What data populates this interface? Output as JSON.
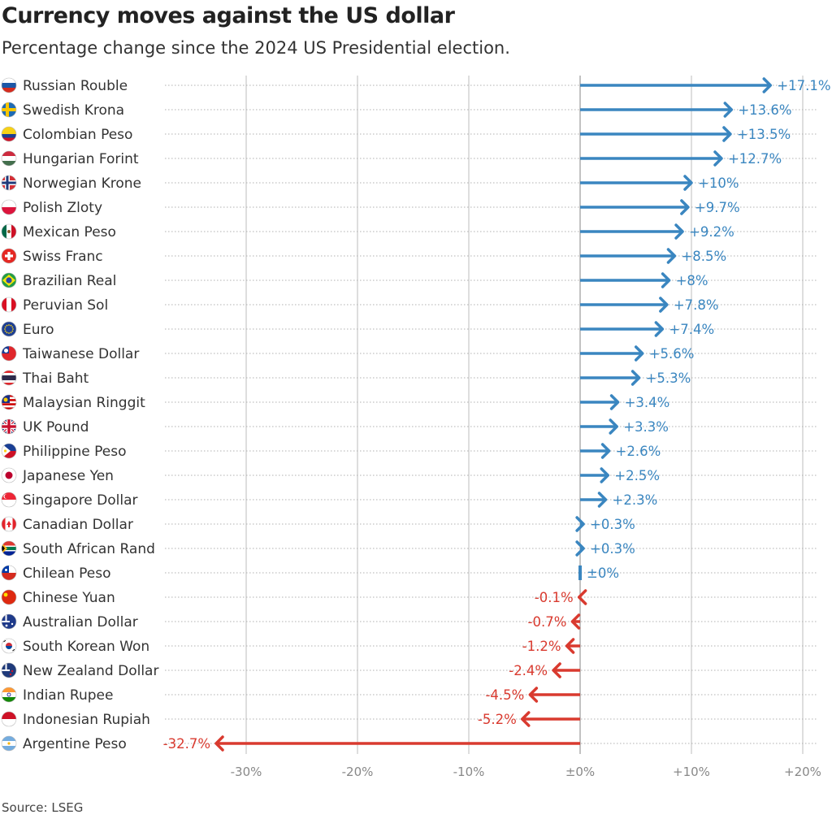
{
  "title": "Currency moves against the US dollar",
  "subtitle": "Percentage change since the 2024 US Presidential election.",
  "source": "Source: LSEG",
  "colors": {
    "positive": "#3a86c0",
    "negative": "#d93a2f",
    "zero": "#3a86c0",
    "grid": "#c8c8c8",
    "dotted": "#b0b0b0",
    "axis": "#888888"
  },
  "chart_data": {
    "type": "bar",
    "title": "Currency moves against the US dollar",
    "subtitle": "Percentage change since the 2024 US Presidential election.",
    "xlim": [
      -35,
      20
    ],
    "xticks": [
      -30,
      -20,
      -10,
      0,
      10,
      20
    ],
    "xtick_labels": [
      "-30%",
      "-20%",
      "-10%",
      "±0%",
      "+10%",
      "+20%"
    ],
    "grid": true,
    "categories": [
      "Russian Rouble",
      "Swedish Krona",
      "Colombian Peso",
      "Hungarian Forint",
      "Norwegian Krone",
      "Polish Zloty",
      "Mexican Peso",
      "Swiss Franc",
      "Brazilian Real",
      "Peruvian Sol",
      "Euro",
      "Taiwanese Dollar",
      "Thai Baht",
      "Malaysian Ringgit",
      "UK Pound",
      "Philippine Peso",
      "Japanese Yen",
      "Singapore Dollar",
      "Canadian Dollar",
      "South African Rand",
      "Chilean Peso",
      "Chinese Yuan",
      "Australian Dollar",
      "South Korean Won",
      "New Zealand Dollar",
      "Indian Rupee",
      "Indonesian Rupiah",
      "Argentine Peso"
    ],
    "values": [
      17.1,
      13.6,
      13.5,
      12.7,
      10,
      9.7,
      9.2,
      8.5,
      8,
      7.8,
      7.4,
      5.6,
      5.3,
      3.4,
      3.3,
      2.6,
      2.5,
      2.3,
      0.3,
      0.3,
      0,
      -0.1,
      -0.7,
      -1.2,
      -2.4,
      -4.5,
      -5.2,
      -32.7
    ],
    "labels": [
      "+17.1%",
      "+13.6%",
      "+13.5%",
      "+12.7%",
      "+10%",
      "+9.7%",
      "+9.2%",
      "+8.5%",
      "+8%",
      "+7.8%",
      "+7.4%",
      "+5.6%",
      "+5.3%",
      "+3.4%",
      "+3.3%",
      "+2.6%",
      "+2.5%",
      "+2.3%",
      "+0.3%",
      "+0.3%",
      "±0%",
      "-0.1%",
      "-0.7%",
      "-1.2%",
      "-2.4%",
      "-4.5%",
      "-5.2%",
      "-32.7%"
    ],
    "flags": [
      "russia-flag-icon",
      "sweden-flag-icon",
      "colombia-flag-icon",
      "hungary-flag-icon",
      "norway-flag-icon",
      "poland-flag-icon",
      "mexico-flag-icon",
      "switzerland-flag-icon",
      "brazil-flag-icon",
      "peru-flag-icon",
      "eu-flag-icon",
      "taiwan-flag-icon",
      "thailand-flag-icon",
      "malaysia-flag-icon",
      "uk-flag-icon",
      "philippines-flag-icon",
      "japan-flag-icon",
      "singapore-flag-icon",
      "canada-flag-icon",
      "south-africa-flag-icon",
      "chile-flag-icon",
      "china-flag-icon",
      "australia-flag-icon",
      "south-korea-flag-icon",
      "new-zealand-flag-icon",
      "india-flag-icon",
      "indonesia-flag-icon",
      "argentina-flag-icon"
    ]
  }
}
